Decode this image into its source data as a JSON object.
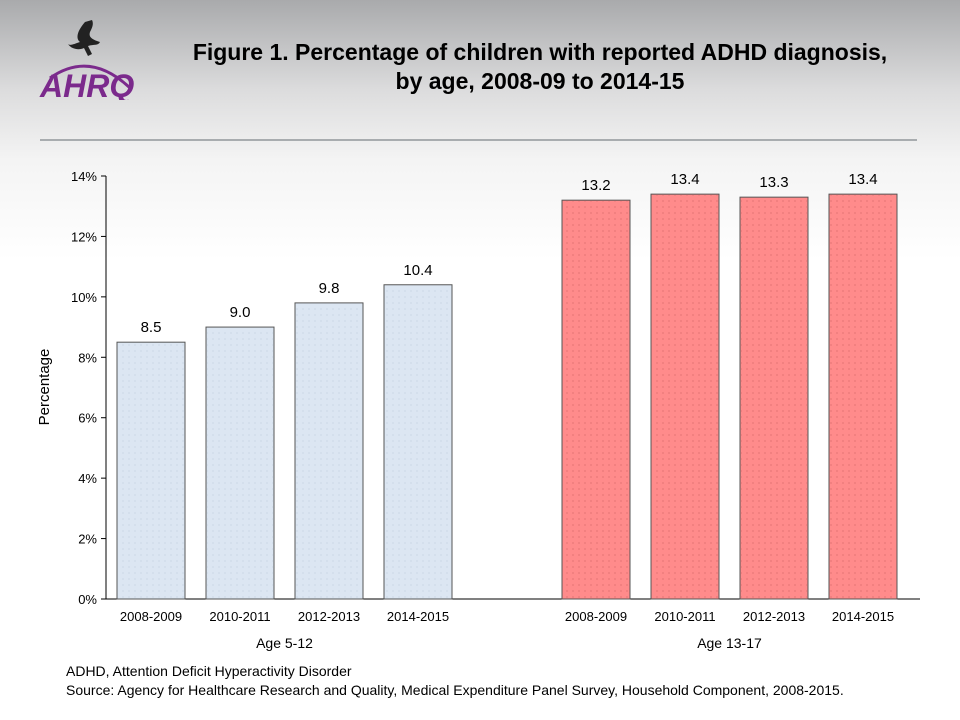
{
  "header": {
    "title_line1": "Figure 1. Percentage of children with reported ADHD diagnosis,",
    "title_line2": "by age, 2008-09 to 2014-15",
    "logo_text": "AHRQ"
  },
  "footer": {
    "note": "ADHD, Attention Deficit Hyperactivity Disorder",
    "source": "Source: Agency for Healthcare Research and Quality, Medical Expenditure Panel Survey, Household Component, 2008-2015."
  },
  "chart_data": {
    "type": "bar",
    "title": "Figure 1. Percentage of children with reported ADHD diagnosis, by age, 2008-09 to 2014-15",
    "ylabel": "Percentage",
    "ylim": [
      0,
      14
    ],
    "yticks": [
      0,
      2,
      4,
      6,
      8,
      10,
      12,
      14
    ],
    "ytick_labels": [
      "0%",
      "2%",
      "4%",
      "6%",
      "8%",
      "10%",
      "12%",
      "14%"
    ],
    "grid": false,
    "groups": [
      {
        "name": "Age 5-12",
        "color": "#dce6f2",
        "categories": [
          "2008-2009",
          "2010-2011",
          "2012-2013",
          "2014-2015"
        ],
        "values": [
          8.5,
          9.0,
          9.8,
          10.4
        ],
        "labels": [
          "8.5",
          "9.0",
          "9.8",
          "10.4"
        ]
      },
      {
        "name": "Age 13-17",
        "color": "#ff8b8b",
        "categories": [
          "2008-2009",
          "2010-2011",
          "2012-2013",
          "2014-2015"
        ],
        "values": [
          13.2,
          13.4,
          13.3,
          13.4
        ],
        "labels": [
          "13.2",
          "13.4",
          "13.3",
          "13.4"
        ]
      }
    ]
  }
}
